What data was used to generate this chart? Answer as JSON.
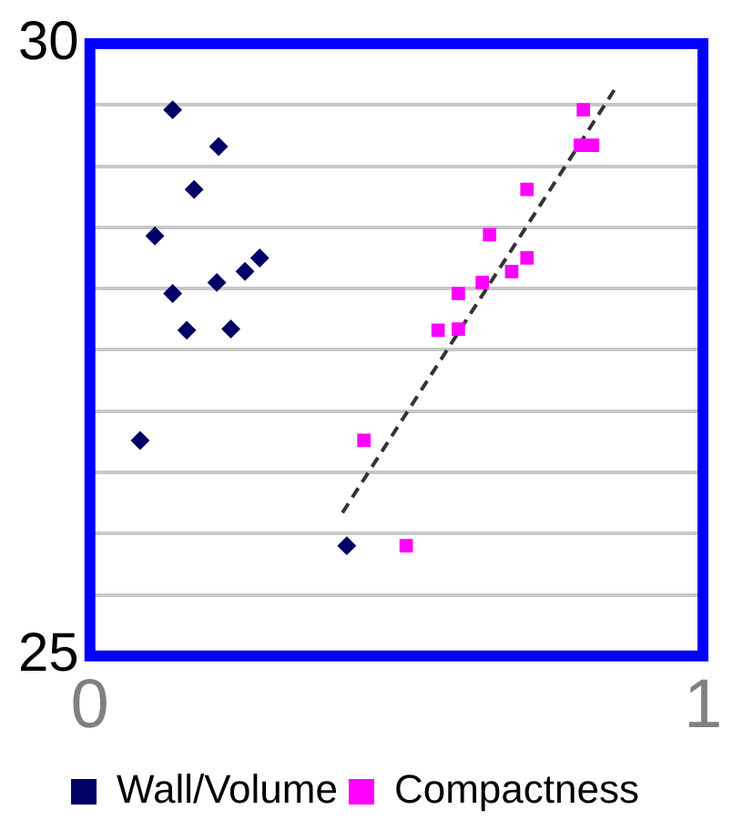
{
  "chart_data": {
    "type": "scatter",
    "xlim": [
      0,
      1
    ],
    "xticks": [
      0,
      1
    ],
    "ylim": [
      25,
      30
    ],
    "yticks": [
      25,
      {
        "value": 25.5,
        "label": null
      },
      {
        "value": 26,
        "label": null
      },
      {
        "value": 26.5,
        "label": null
      },
      {
        "value": 27,
        "label": null
      },
      {
        "value": 27.5,
        "label": null
      },
      {
        "value": 28,
        "label": null
      },
      {
        "value": 28.5,
        "label": null
      },
      {
        "value": 29,
        "label": null
      },
      {
        "value": 29.5,
        "label": null
      },
      30
    ],
    "grid": "y",
    "legend": "bottom",
    "series": [
      {
        "name": "Wall/Volume",
        "color": "#000066",
        "marker": "diamond",
        "x": [
          0.135,
          0.21,
          0.17,
          0.106,
          0.277,
          0.253,
          0.207,
          0.135,
          0.158,
          0.23,
          0.082,
          0.419
        ],
        "values": [
          29.46,
          29.16,
          28.81,
          28.43,
          28.25,
          28.14,
          28.05,
          27.96,
          27.66,
          27.67,
          26.76,
          25.9
        ]
      },
      {
        "name": "Compactness",
        "color": "#ff00ff",
        "marker": "square",
        "x": [
          0.805,
          0.8,
          0.82,
          0.713,
          0.652,
          0.713,
          0.688,
          0.64,
          0.601,
          0.568,
          0.601,
          0.447,
          0.516
        ],
        "values": [
          29.46,
          29.17,
          29.17,
          28.81,
          28.44,
          28.25,
          28.14,
          28.05,
          27.96,
          27.66,
          27.67,
          26.76,
          25.9
        ]
      },
      {
        "type": "line",
        "color": "#333333",
        "line_style": "dashed",
        "marker": "none",
        "x": [
          0.412,
          0.859
        ],
        "values": [
          26.17,
          29.65
        ]
      }
    ]
  }
}
